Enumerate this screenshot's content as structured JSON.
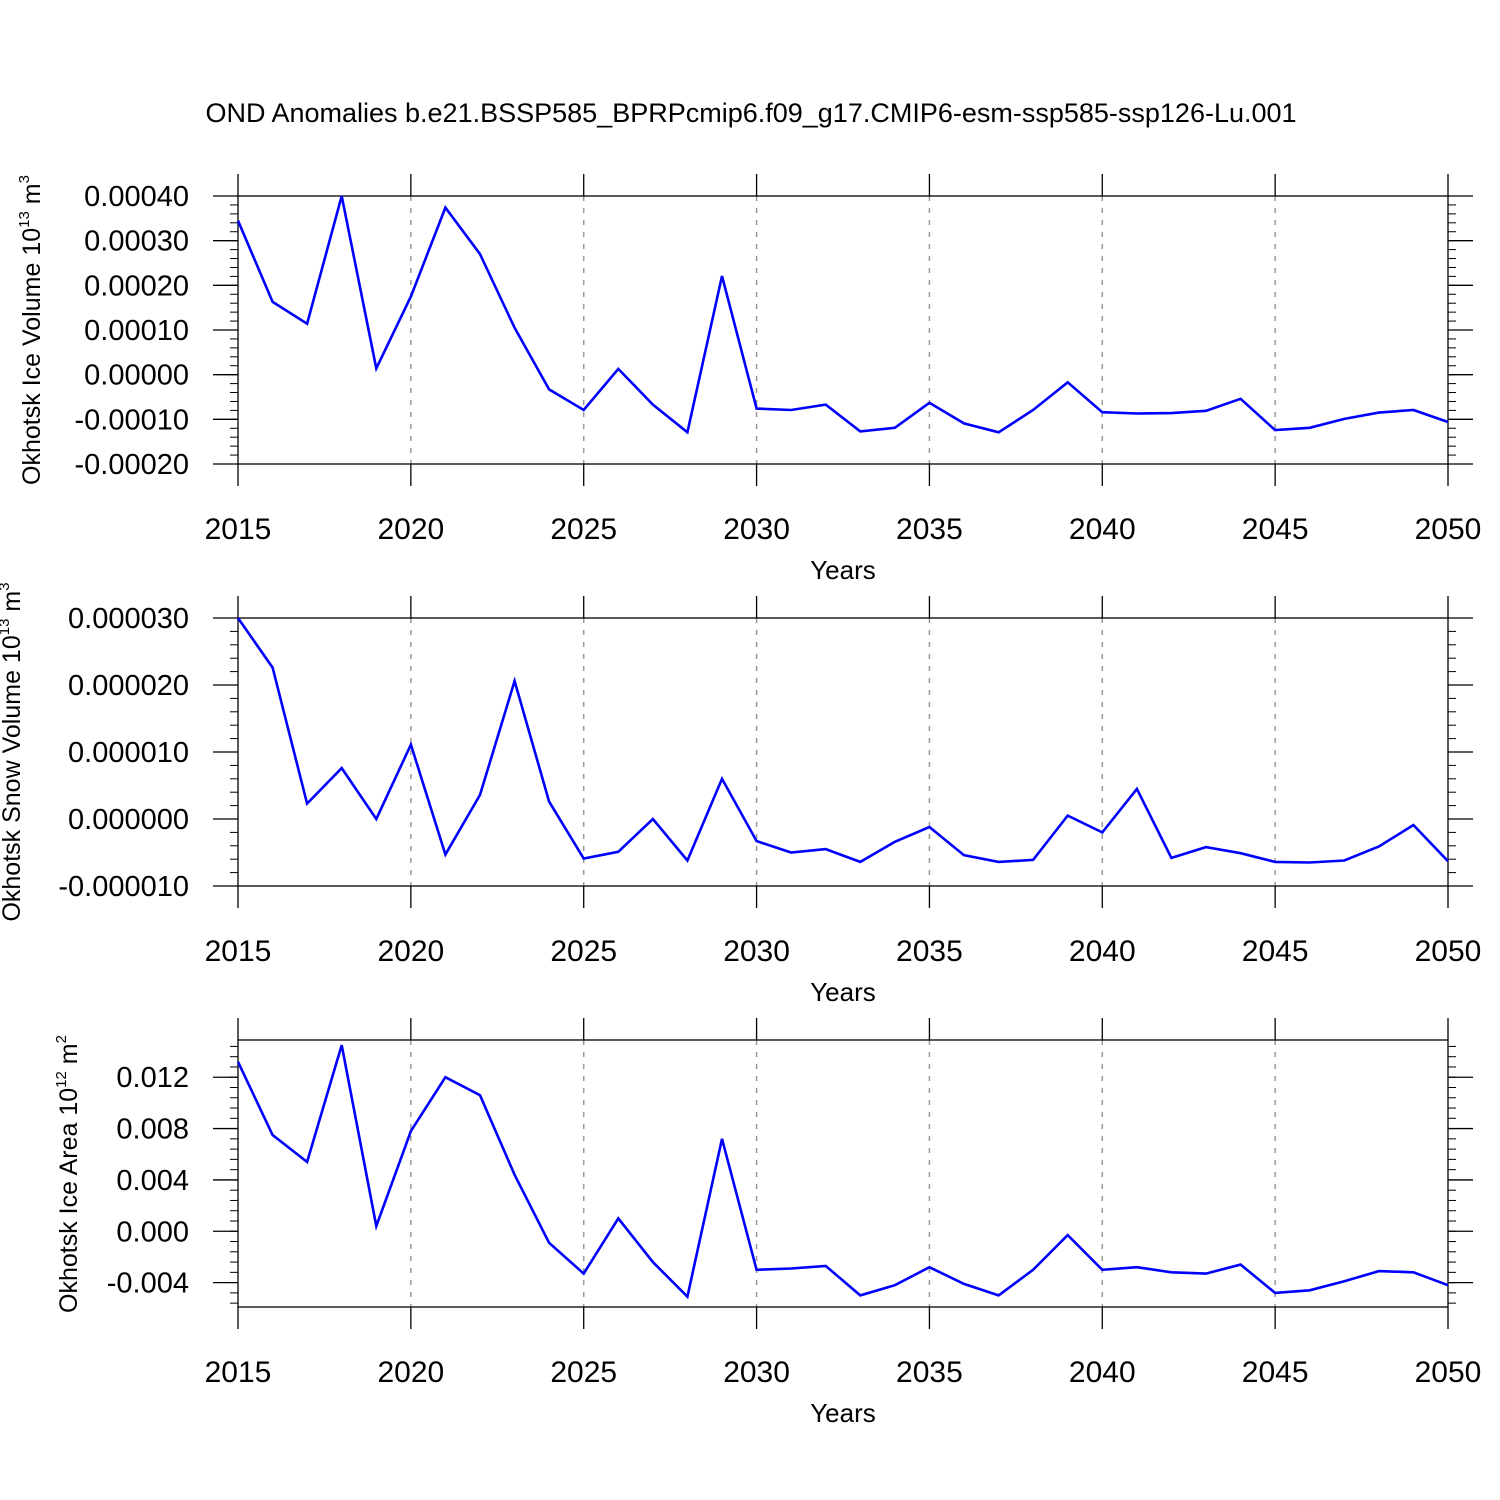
{
  "title": "OND Anomalies b.e21.BSSP585_BPRPcmip6.f09_g17.CMIP6-esm-ssp585-ssp126-Lu.001",
  "colors": {
    "line": "#0000ff",
    "grid": "#9a9a9a",
    "axis": "#000000"
  },
  "chart_data": [
    {
      "type": "line",
      "name": "ice-volume",
      "ylabel_main": "Okhotsk Ice Volume 10",
      "ylabel_exp": "13",
      "ylabel_unit": "m",
      "ylabel_unit_exp": "3",
      "xlabel": "Years",
      "xlim": [
        2015,
        2050
      ],
      "ylim": [
        -0.0002,
        0.0004
      ],
      "yticks": [
        -0.0002,
        -0.0001,
        0.0,
        0.0001,
        0.0002,
        0.0003,
        0.0004
      ],
      "ytick_labels": [
        "-0.00020",
        "-0.00010",
        "0.00000",
        "0.00010",
        "0.00020",
        "0.00030",
        "0.00040"
      ],
      "xticks": [
        2015,
        2020,
        2025,
        2030,
        2035,
        2040,
        2045,
        2050
      ],
      "xtick_labels": [
        "2015",
        "2020",
        "2025",
        "2030",
        "2035",
        "2040",
        "2045",
        "2050"
      ],
      "x": [
        2015,
        2016,
        2017,
        2018,
        2019,
        2020,
        2021,
        2022,
        2023,
        2024,
        2025,
        2026,
        2027,
        2028,
        2029,
        2030,
        2031,
        2032,
        2033,
        2034,
        2035,
        2036,
        2037,
        2038,
        2039,
        2040,
        2041,
        2042,
        2043,
        2044,
        2045,
        2046,
        2047,
        2048,
        2049,
        2050
      ],
      "y": [
        0.000345,
        0.000163,
        0.000114,
        0.0004,
        1.4e-05,
        0.000175,
        0.000374,
        0.00027,
        0.000105,
        -3.3e-05,
        -7.9e-05,
        1.3e-05,
        -6.7e-05,
        -0.000129,
        0.000221,
        -7.6e-05,
        -7.9e-05,
        -6.7e-05,
        -0.000127,
        -0.000119,
        -6.3e-05,
        -0.000109,
        -0.000129,
        -7.9e-05,
        -1.7e-05,
        -8.4e-05,
        -8.7e-05,
        -8.6e-05,
        -8.1e-05,
        -5.4e-05,
        -0.000124,
        -0.000119,
        -9.9e-05,
        -8.5e-05,
        -7.9e-05,
        -0.000106
      ]
    },
    {
      "type": "line",
      "name": "snow-volume",
      "ylabel_main": "Okhotsk Snow Volume 10",
      "ylabel_exp": "13",
      "ylabel_unit": "m",
      "ylabel_unit_exp": "3",
      "xlabel": "Years",
      "xlim": [
        2015,
        2050
      ],
      "ylim": [
        -1e-05,
        3e-05
      ],
      "yticks": [
        -1e-05,
        0.0,
        1e-05,
        2e-05,
        3e-05
      ],
      "ytick_labels": [
        "-0.000010",
        "0.000000",
        "0.000010",
        "0.000020",
        "0.000030"
      ],
      "xticks": [
        2015,
        2020,
        2025,
        2030,
        2035,
        2040,
        2045,
        2050
      ],
      "xtick_labels": [
        "2015",
        "2020",
        "2025",
        "2030",
        "2035",
        "2040",
        "2045",
        "2050"
      ],
      "x": [
        2015,
        2016,
        2017,
        2018,
        2019,
        2020,
        2021,
        2022,
        2023,
        2024,
        2025,
        2026,
        2027,
        2028,
        2029,
        2030,
        2031,
        2032,
        2033,
        2034,
        2035,
        2036,
        2037,
        2038,
        2039,
        2040,
        2041,
        2042,
        2043,
        2044,
        2045,
        2046,
        2047,
        2048,
        2049,
        2050
      ],
      "y": [
        3e-05,
        2.26e-05,
        2.3e-06,
        7.6e-06,
        0.0,
        1.11e-05,
        -5.3e-06,
        3.6e-06,
        2.06e-05,
        2.6e-06,
        -5.9e-06,
        -4.9e-06,
        0.0,
        -6.2e-06,
        6e-06,
        -3.3e-06,
        -5e-06,
        -4.5e-06,
        -6.4e-06,
        -3.4e-06,
        -1.2e-06,
        -5.4e-06,
        -6.4e-06,
        -6.1e-06,
        5e-07,
        -2e-06,
        4.5e-06,
        -5.8e-06,
        -4.2e-06,
        -5.1e-06,
        -6.4e-06,
        -6.5e-06,
        -6.2e-06,
        -4.1e-06,
        -9e-07,
        -6.3e-06
      ]
    },
    {
      "type": "line",
      "name": "ice-area",
      "ylabel_main": "Okhotsk Ice Area 10",
      "ylabel_exp": "12",
      "ylabel_unit": "m",
      "ylabel_unit_exp": "2",
      "xlabel": "Years",
      "xlim": [
        2015,
        2050
      ],
      "ylim": [
        -0.0059,
        0.0149
      ],
      "yticks": [
        -0.004,
        0.0,
        0.004,
        0.008,
        0.012
      ],
      "ytick_labels": [
        "-0.004",
        "0.000",
        "0.004",
        "0.008",
        "0.012"
      ],
      "xticks": [
        2015,
        2020,
        2025,
        2030,
        2035,
        2040,
        2045,
        2050
      ],
      "xtick_labels": [
        "2015",
        "2020",
        "2025",
        "2030",
        "2035",
        "2040",
        "2045",
        "2050"
      ],
      "x": [
        2015,
        2016,
        2017,
        2018,
        2019,
        2020,
        2021,
        2022,
        2023,
        2024,
        2025,
        2026,
        2027,
        2028,
        2029,
        2030,
        2031,
        2032,
        2033,
        2034,
        2035,
        2036,
        2037,
        2038,
        2039,
        2040,
        2041,
        2042,
        2043,
        2044,
        2045,
        2046,
        2047,
        2048,
        2049,
        2050
      ],
      "y": [
        0.0132,
        0.0075,
        0.0054,
        0.0145,
        0.0004,
        0.0078,
        0.012,
        0.0106,
        0.0044,
        -0.0009,
        -0.0033,
        0.001,
        -0.0024,
        -0.0051,
        0.0072,
        -0.003,
        -0.0029,
        -0.0027,
        -0.005,
        -0.0042,
        -0.0028,
        -0.0041,
        -0.005,
        -0.003,
        -0.0003,
        -0.003,
        -0.0028,
        -0.0032,
        -0.0033,
        -0.0026,
        -0.0048,
        -0.0046,
        -0.0039,
        -0.0031,
        -0.0032,
        -0.0042
      ]
    }
  ]
}
